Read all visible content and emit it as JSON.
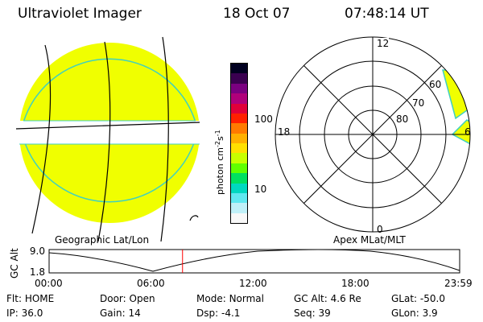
{
  "header": {
    "instrument": "Ultraviolet Imager",
    "date": "18 Oct 07",
    "time": "07:48:14 UT"
  },
  "colors": {
    "auroral_fill": "#f0ff00",
    "limb": "#3fd0c0",
    "cursor": "#ff0000"
  },
  "geo_panel": {
    "caption": "Geographic Lat/Lon"
  },
  "colorbar": {
    "label": "photon cm^-2 s^-1",
    "ticks": [
      "100",
      "10"
    ],
    "colors": [
      "#000020",
      "#3a0050",
      "#7a0080",
      "#b0007a",
      "#e0003a",
      "#ff2000",
      "#ff7a00",
      "#ffb000",
      "#ffe000",
      "#c8ff00",
      "#60ff00",
      "#00e060",
      "#00d8c0",
      "#60e8f0",
      "#c0f0f8",
      "#f8f8f8"
    ]
  },
  "polar_panel": {
    "caption": "Apex MLat/MLT",
    "mlt_labels": [
      "12",
      "18",
      "6",
      "0"
    ],
    "mlat_labels": [
      "60",
      "70",
      "80"
    ]
  },
  "altitude_plot": {
    "ylabel": "GC Alt",
    "yticks": [
      "9.0",
      "1.8"
    ],
    "xticks": [
      "00:00",
      "06:00",
      "12:00",
      "18:00",
      "23:59"
    ],
    "cursor_time_hours": 7.8
  },
  "status": {
    "row1": [
      {
        "label": "Flt:",
        "value": "HOME"
      },
      {
        "label": "Door:",
        "value": "Open"
      },
      {
        "label": "Mode:",
        "value": "Normal"
      },
      {
        "label": "GC Alt:",
        "value": "4.6 Re"
      },
      {
        "label": "GLat:",
        "value": "-50.0"
      }
    ],
    "row2": [
      {
        "label": "IP:",
        "value": "36.0"
      },
      {
        "label": "Gain:",
        "value": "14"
      },
      {
        "label": "Dsp:",
        "value": "-4.1"
      },
      {
        "label": "Seq:",
        "value": "39"
      },
      {
        "label": "GLon:",
        "value": "3.9"
      }
    ]
  }
}
